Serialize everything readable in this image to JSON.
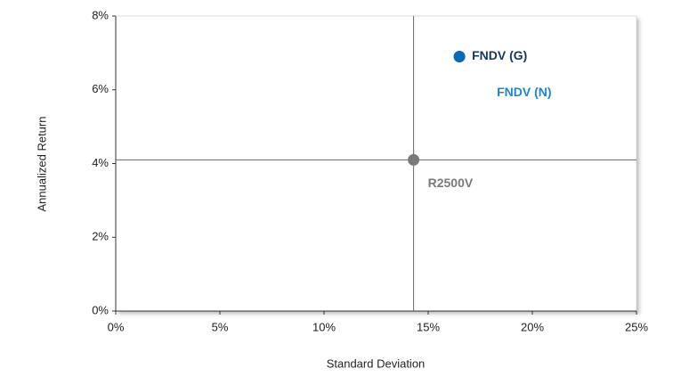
{
  "chart_data": {
    "type": "scatter",
    "xlabel": "Standard Deviation",
    "ylabel": "Annualized Return",
    "xlim": [
      0,
      25
    ],
    "ylim": [
      0,
      8
    ],
    "xticks": [
      {
        "value": 0,
        "label": "0%"
      },
      {
        "value": 5,
        "label": "5%"
      },
      {
        "value": 10,
        "label": "10%"
      },
      {
        "value": 15,
        "label": "15%"
      },
      {
        "value": 20,
        "label": "20%"
      },
      {
        "value": 25,
        "label": "25%"
      }
    ],
    "yticks": [
      {
        "value": 0,
        "label": "0%"
      },
      {
        "value": 2,
        "label": "2%"
      },
      {
        "value": 4,
        "label": "4%"
      },
      {
        "value": 6,
        "label": "6%"
      },
      {
        "value": 8,
        "label": "8%"
      }
    ],
    "series": [
      {
        "name": "FNDV (N)",
        "color": "#1f86c8",
        "x": [
          16.5
        ],
        "values": [
          6.9
        ]
      },
      {
        "name": "FNDV (G)",
        "color": "#0a6ab4",
        "label_color": "#16375e",
        "x": [
          16.5
        ],
        "values": [
          6.9
        ]
      },
      {
        "name": "R2500V",
        "color": "#7a7a7a",
        "x": [
          14.3
        ],
        "values": [
          4.1
        ]
      }
    ]
  }
}
